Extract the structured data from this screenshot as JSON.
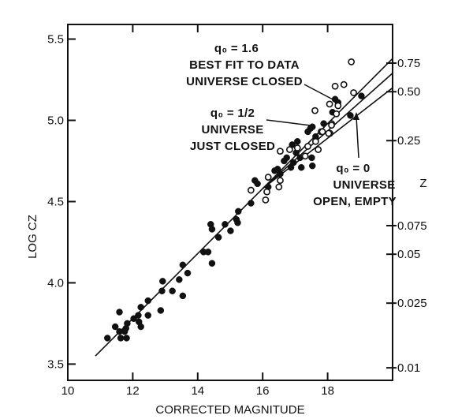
{
  "chart_data": {
    "type": "scatter",
    "xlabel": "CORRECTED MAGNITUDE",
    "ylabel": "LOG CZ",
    "y2label": "Z",
    "xlim": [
      10,
      20
    ],
    "ylim": [
      3.4,
      5.59
    ],
    "xticks": [
      "10",
      "12",
      "14",
      "16",
      "18"
    ],
    "yticks": [
      "3.5",
      "4.0",
      "4.5",
      "5.0",
      "5.5"
    ],
    "y2ticks": [
      "0.75",
      "0.50",
      "0.25",
      "0.075",
      "0.05",
      "0.025",
      "0.01"
    ],
    "grid": false,
    "series": [
      {
        "marker": "filled-circle",
        "color": "#111111",
        "points": [
          [
            11.22,
            3.66
          ],
          [
            11.46,
            3.73
          ],
          [
            11.59,
            3.82
          ],
          [
            11.59,
            3.7
          ],
          [
            11.63,
            3.66
          ],
          [
            11.75,
            3.7
          ],
          [
            11.81,
            3.66
          ],
          [
            11.83,
            3.75
          ],
          [
            11.79,
            3.72
          ],
          [
            12.03,
            3.78
          ],
          [
            12.17,
            3.8
          ],
          [
            12.19,
            3.76
          ],
          [
            12.25,
            3.73
          ],
          [
            12.25,
            3.85
          ],
          [
            12.47,
            3.89
          ],
          [
            12.47,
            3.8
          ],
          [
            12.86,
            3.83
          ],
          [
            12.9,
            3.95
          ],
          [
            12.92,
            4.01
          ],
          [
            13.22,
            3.95
          ],
          [
            13.43,
            4.02
          ],
          [
            13.54,
            3.92
          ],
          [
            13.54,
            4.11
          ],
          [
            13.69,
            4.06
          ],
          [
            14.18,
            4.19
          ],
          [
            14.32,
            4.19
          ],
          [
            14.44,
            4.12
          ],
          [
            14.4,
            4.36
          ],
          [
            14.44,
            4.33
          ],
          [
            14.64,
            4.28
          ],
          [
            14.84,
            4.36
          ],
          [
            15.01,
            4.32
          ],
          [
            15.19,
            4.39
          ],
          [
            15.23,
            4.37
          ],
          [
            15.25,
            4.44
          ],
          [
            15.64,
            4.49
          ],
          [
            15.76,
            4.63
          ],
          [
            15.84,
            4.61
          ],
          [
            16.17,
            4.59
          ],
          [
            16.37,
            4.69
          ],
          [
            16.46,
            4.7
          ],
          [
            16.54,
            4.67
          ],
          [
            16.66,
            4.75
          ],
          [
            16.74,
            4.77
          ],
          [
            16.87,
            4.71
          ],
          [
            16.95,
            4.74
          ],
          [
            16.91,
            4.85
          ],
          [
            17.07,
            4.87
          ],
          [
            17.03,
            4.8
          ],
          [
            17.19,
            4.71
          ],
          [
            17.15,
            4.77
          ],
          [
            17.51,
            4.77
          ],
          [
            17.53,
            4.72
          ],
          [
            17.47,
            4.95
          ],
          [
            17.53,
            4.96
          ],
          [
            17.39,
            4.93
          ],
          [
            17.63,
            4.9
          ],
          [
            17.88,
            4.98
          ],
          [
            18.23,
            5.13
          ],
          [
            18.32,
            5.11
          ],
          [
            18.15,
            5.05
          ],
          [
            19.04,
            5.15
          ],
          [
            18.7,
            5.03
          ]
        ]
      },
      {
        "marker": "open-circle",
        "color": "#111111",
        "points": [
          [
            15.64,
            4.57
          ],
          [
            16.09,
            4.51
          ],
          [
            16.13,
            4.56
          ],
          [
            16.54,
            4.63
          ],
          [
            16.5,
            4.59
          ],
          [
            16.17,
            4.65
          ],
          [
            16.54,
            4.81
          ],
          [
            16.83,
            4.82
          ],
          [
            17.07,
            4.83
          ],
          [
            17.31,
            4.78
          ],
          [
            17.39,
            4.84
          ],
          [
            17.71,
            4.82
          ],
          [
            17.63,
            4.87
          ],
          [
            17.8,
            4.93
          ],
          [
            18.07,
            4.92
          ],
          [
            18.12,
            4.98
          ],
          [
            18.73,
            5.36
          ],
          [
            18.23,
            5.21
          ],
          [
            18.5,
            5.22
          ],
          [
            18.06,
            5.1
          ],
          [
            18.32,
            5.09
          ],
          [
            17.61,
            5.06
          ],
          [
            18.27,
            5.04
          ],
          [
            18.8,
            5.17
          ],
          [
            18.12,
            4.97
          ],
          [
            18.03,
            4.92
          ],
          [
            17.84,
            4.93
          ]
        ]
      }
    ],
    "lines": [
      {
        "name": "q0 = 1.6",
        "points": [
          [
            10.85,
            3.55
          ],
          [
            20,
            5.38
          ]
        ]
      },
      {
        "name": "q0 = 1/2",
        "points": [
          [
            16,
            4.58
          ],
          [
            20,
            5.29
          ]
        ]
      },
      {
        "name": "q0 = 0",
        "points": [
          [
            16,
            4.58
          ],
          [
            20,
            5.2
          ]
        ]
      }
    ],
    "annotations": {
      "q16": {
        "line1": "q₀ = 1.6",
        "line2": "BEST FIT TO DATA",
        "line3": "UNIVERSE CLOSED"
      },
      "q12": {
        "line1": "q₀ = 1/2",
        "line2": "UNIVERSE",
        "line3": "JUST CLOSED"
      },
      "q0": {
        "line1": "q₀ = 0",
        "line2": "UNIVERSE",
        "line3": "OPEN, EMPTY"
      }
    }
  }
}
